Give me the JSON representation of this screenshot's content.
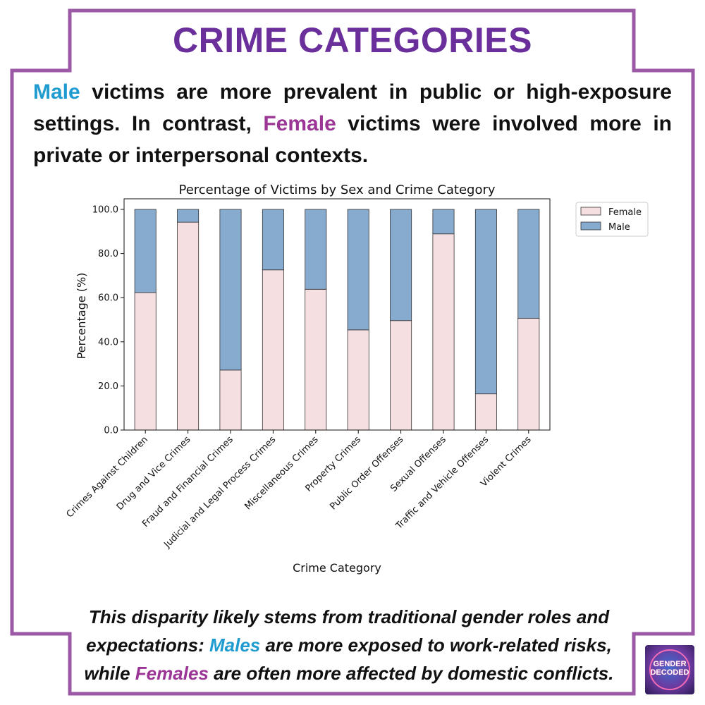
{
  "page": {
    "title": "CRIME CATEGORIES",
    "intro": {
      "male_word": "Male",
      "part1": " victims are more prevalent in public or high-exposure settings. In contrast, ",
      "female_word": "Female",
      "part2": " victims were involved more in private or interpersonal contexts."
    },
    "outro": {
      "part1": "This disparity likely stems from traditional gender roles and expectations: ",
      "male_word": "Males",
      "part2": " are more exposed to work-related risks, while ",
      "female_word": "Females",
      "part3": " are often more affected by domestic conflicts."
    },
    "logo_text": [
      "GENDER",
      "DECODED"
    ]
  },
  "colors": {
    "frame": "#9b59a6",
    "title": "#6a2f9a",
    "male_highlight": "#1f9bd0",
    "female_highlight": "#9b3596",
    "female_bar": "#f6dfe0",
    "male_bar": "#87abcf"
  },
  "chart_data": {
    "type": "bar",
    "stacked": true,
    "title": "Percentage of Victims by Sex and Crime Category",
    "xlabel": "Crime Category",
    "ylabel": "Percentage (%)",
    "ylim": [
      0,
      100
    ],
    "yticks": [
      0,
      20,
      40,
      60,
      80,
      100
    ],
    "ytick_labels": [
      "0.0",
      "20.0",
      "40.0",
      "60.0",
      "80.0",
      "100.0"
    ],
    "legend_position": "upper right, outside plot",
    "grid": false,
    "categories": [
      "Crimes Against Children",
      "Drug and Vice Crimes",
      "Fraud and Financial Crimes",
      "Judicial and Legal Process Crimes",
      "Miscellaneous Crimes",
      "Property Crimes",
      "Public Order Offenses",
      "Sexual Offenses",
      "Traffic and Vehicle Offenses",
      "Violent Crimes"
    ],
    "series": [
      {
        "name": "Female",
        "color": "#f6dfe0",
        "values": [
          62.3,
          94.2,
          27.2,
          72.6,
          63.8,
          45.4,
          49.6,
          88.9,
          16.4,
          50.6
        ]
      },
      {
        "name": "Male",
        "color": "#87abcf",
        "values": [
          37.7,
          5.8,
          72.8,
          27.4,
          36.2,
          54.6,
          50.4,
          11.1,
          83.6,
          49.4
        ]
      }
    ]
  }
}
